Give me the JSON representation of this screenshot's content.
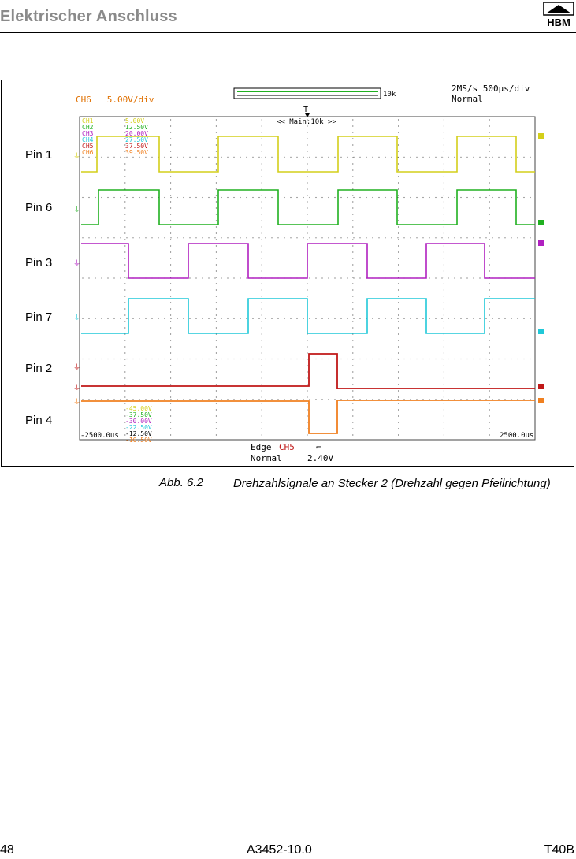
{
  "header": {
    "title": "Elektrischer Anschluss",
    "logo_text": "HBM"
  },
  "scope": {
    "channel_setting": "CH6   5.00V/div",
    "sample_rate": "2MS/s 500µs/div",
    "mode": "Normal",
    "memory": "10k",
    "trigger_marker": "T",
    "main_label": "<< Main:10k >>",
    "ch_names": [
      "CH1",
      "CH2",
      "CH3",
      "CH4",
      "CH5",
      "CH6"
    ],
    "ch_offsets": [
      "5.00V",
      "12.50V",
      "20.00V",
      "27.50V",
      "37.50V",
      "39.50V"
    ],
    "ch_bottom_values": [
      "-45.00V",
      "-37.50V",
      "-30.00V",
      "-22.50V",
      "-12.50V",
      "-10.50V"
    ],
    "x_left": "-2500.0us",
    "x_right": "2500.0us",
    "trigger_line1_label": "Edge",
    "trigger_line1_channel": "CH5",
    "trigger_line2_mode": "Normal",
    "trigger_level": "2.40V",
    "colors": {
      "ch1": "#d4cf1a",
      "ch2": "#20b020",
      "ch3": "#b020c0",
      "ch4": "#20c8d8",
      "ch5": "#c01818",
      "ch6": "#f08020",
      "header_orange": "#e07000"
    }
  },
  "pins": [
    "Pin 1",
    "Pin 6",
    "Pin 3",
    "Pin 7",
    "Pin 2",
    "Pin 4"
  ],
  "caption": {
    "number": "Abb. 6.2",
    "text": "Drehzahlsignale an Stecker 2 (Drehzahl gegen Pfeilrichtung)"
  },
  "footer": {
    "page": "48",
    "doc_number": "A3452-10.0",
    "product": "T40B"
  }
}
